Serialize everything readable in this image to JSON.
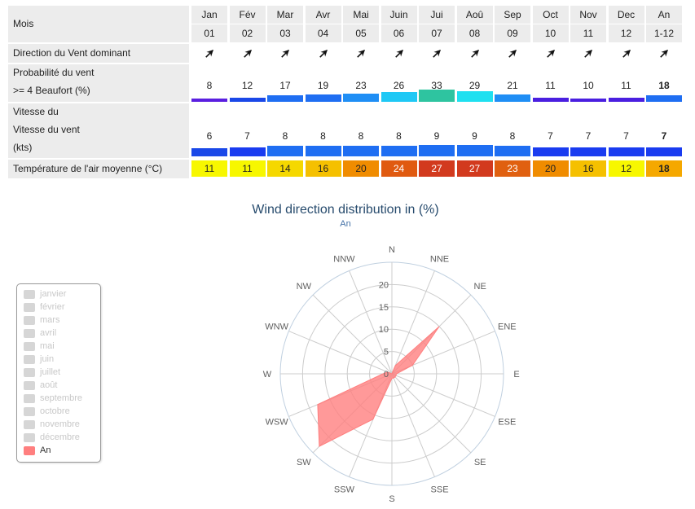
{
  "table": {
    "row_labels": {
      "mois": "Mois",
      "direction": "Direction du Vent dominant",
      "prob_1": "Probabilité du vent",
      "prob_2": ">= 4 Beaufort (%)",
      "speed_1": "Vitesse du",
      "speed_2": "Vitesse du vent",
      "speed_3": "(kts)",
      "temp": "Température de l'air moyenne (°C)"
    },
    "months": [
      {
        "name": "Jan",
        "num": "01",
        "prob": 8,
        "speed": 6,
        "temp": 11,
        "dir": "SW"
      },
      {
        "name": "Fév",
        "num": "02",
        "prob": 12,
        "speed": 7,
        "temp": 11,
        "dir": "SW"
      },
      {
        "name": "Mar",
        "num": "03",
        "prob": 17,
        "speed": 8,
        "temp": 14,
        "dir": "SW"
      },
      {
        "name": "Avr",
        "num": "04",
        "prob": 19,
        "speed": 8,
        "temp": 16,
        "dir": "SW"
      },
      {
        "name": "Mai",
        "num": "05",
        "prob": 23,
        "speed": 8,
        "temp": 20,
        "dir": "SW"
      },
      {
        "name": "Juin",
        "num": "06",
        "prob": 26,
        "speed": 8,
        "temp": 24,
        "dir": "SW"
      },
      {
        "name": "Jui",
        "num": "07",
        "prob": 33,
        "speed": 9,
        "temp": 27,
        "dir": "SW"
      },
      {
        "name": "Aoû",
        "num": "08",
        "prob": 29,
        "speed": 9,
        "temp": 27,
        "dir": "SW"
      },
      {
        "name": "Sep",
        "num": "09",
        "prob": 21,
        "speed": 8,
        "temp": 23,
        "dir": "SW"
      },
      {
        "name": "Oct",
        "num": "10",
        "prob": 11,
        "speed": 7,
        "temp": 20,
        "dir": "SW"
      },
      {
        "name": "Nov",
        "num": "11",
        "prob": 10,
        "speed": 7,
        "temp": 16,
        "dir": "SW"
      },
      {
        "name": "Dec",
        "num": "12",
        "prob": 11,
        "speed": 7,
        "temp": 12,
        "dir": "SW"
      },
      {
        "name": "An",
        "num": "1-12",
        "prob": 18,
        "speed": 7,
        "temp": 18,
        "dir": "SW",
        "bold": true
      }
    ],
    "arrow_icon": "wind-direction-arrow-icon",
    "colors": {
      "header_bg": "#ececec",
      "prob_scale": {
        "8": "#5a1fe0",
        "12": "#1a48e8",
        "17": "#1f6ef2",
        "19": "#1f6ef2",
        "23": "#1f8ef5",
        "26": "#1fc8f5",
        "33": "#2ec4a0",
        "29": "#1fe0f0",
        "21": "#1f8ef5",
        "11": "#4a1fe0",
        "10": "#4a1fe0",
        "18": "#1f6ef2"
      },
      "speed_scale": {
        "6": "#1a48e8",
        "7": "#1a3cf0",
        "8": "#1f6ef2",
        "9": "#1f6ef2"
      },
      "temp_scale": {
        "11": "#f7f700",
        "12": "#f7f700",
        "14": "#f5d800",
        "16": "#f5c000",
        "18": "#f5a800",
        "20": "#f08c00",
        "23": "#e06010",
        "24": "#e05a10",
        "27": "#d23a1e"
      }
    }
  },
  "chart_data": {
    "type": "polar-area",
    "title": "Wind direction distribution in (%)",
    "subtitle": "An",
    "directions": [
      "N",
      "NNE",
      "NE",
      "ENE",
      "E",
      "ESE",
      "SE",
      "SSE",
      "S",
      "SSW",
      "SW",
      "WSW",
      "W",
      "WNW",
      "NW",
      "NNW"
    ],
    "radial_ticks": [
      "0",
      "5",
      "10",
      "15",
      "20"
    ],
    "rmax": 25,
    "series": [
      {
        "name": "An",
        "color": "#ff7f7f",
        "values": [
          0,
          2,
          15,
          5,
          1,
          1,
          1,
          1,
          1,
          11,
          23,
          18,
          2,
          1,
          0,
          0
        ]
      }
    ],
    "grid": true
  },
  "legend": {
    "items": [
      "janvier",
      "février",
      "mars",
      "avril",
      "mai",
      "juin",
      "juillet",
      "août",
      "septembre",
      "octobre",
      "novembre",
      "décembre",
      "An"
    ],
    "active": "An",
    "active_color": "#ff7f7f"
  }
}
